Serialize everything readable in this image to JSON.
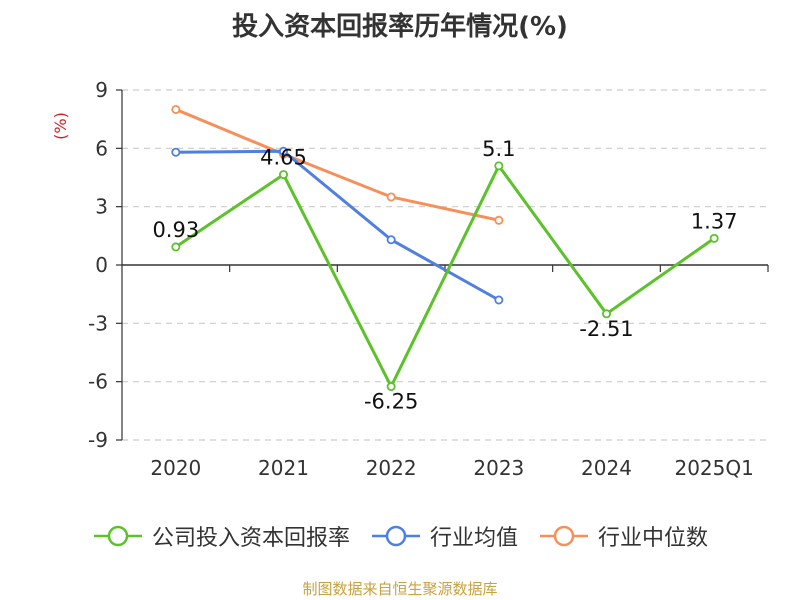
{
  "chart_data": {
    "type": "line",
    "title": "投入资本回报率历年情况(%)",
    "ylabel": "(%)",
    "categories": [
      "2020",
      "2021",
      "2022",
      "2023",
      "2024",
      "2025Q1"
    ],
    "ylim": [
      -9,
      9
    ],
    "yticks": [
      9,
      6,
      3,
      0,
      -3,
      -6,
      -9
    ],
    "grid": true,
    "legend_position": "bottom",
    "series": [
      {
        "name": "公司投入资本回报率",
        "color": "#5bc22a",
        "values": [
          0.93,
          4.65,
          -6.25,
          5.1,
          -2.51,
          1.37
        ],
        "labels": [
          "0.93",
          "4.65",
          "-6.25",
          "5.1",
          "-2.51",
          "1.37"
        ]
      },
      {
        "name": "行业均值",
        "color": "#4f7fe0",
        "values": [
          5.8,
          5.85,
          1.3,
          -1.8,
          null,
          null
        ]
      },
      {
        "name": "行业中位数",
        "color": "#f6905a",
        "values": [
          8.0,
          5.7,
          3.5,
          2.3,
          null,
          null
        ]
      }
    ],
    "source": "制图数据来自恒生聚源数据库"
  }
}
